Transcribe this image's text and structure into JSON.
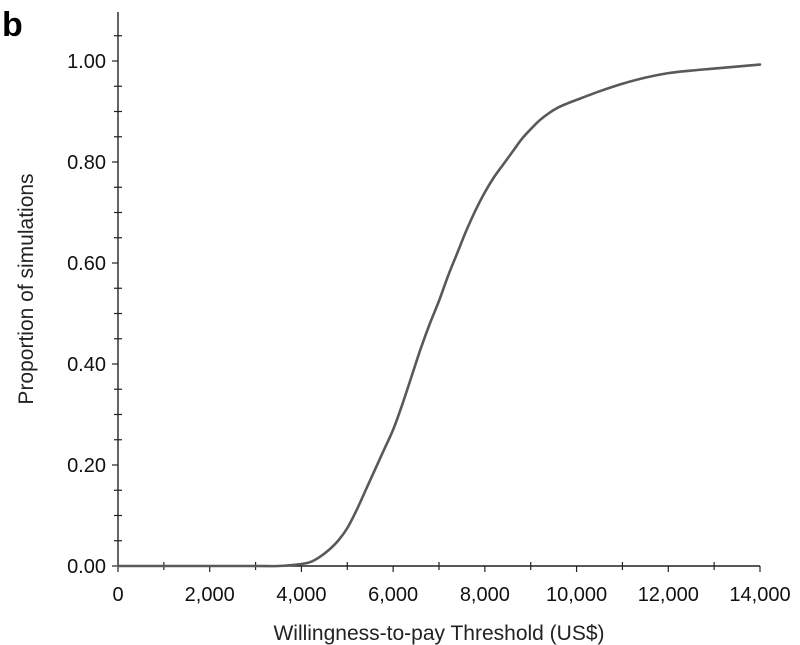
{
  "panel_label": "b",
  "chart_data": {
    "type": "line",
    "title": "",
    "xlabel": "Willingness-to-pay Threshold (US$)",
    "ylabel": "Proportion of simulations",
    "xlim": [
      0,
      14000
    ],
    "ylim": [
      0,
      1.1
    ],
    "x_ticks": [
      0,
      2000,
      4000,
      6000,
      8000,
      10000,
      12000,
      14000
    ],
    "x_tick_labels": [
      "0",
      "2,000",
      "4,000",
      "6,000",
      "8,000",
      "10,000",
      "12,000",
      "14,000"
    ],
    "y_ticks": [
      0,
      0.2,
      0.4,
      0.6,
      0.8,
      1.0
    ],
    "y_tick_labels": [
      "0.00",
      "0.20",
      "0.40",
      "0.60",
      "0.80",
      "1.00"
    ],
    "grid": false,
    "legend": "none",
    "series": [
      {
        "color": "#595959",
        "x": [
          0,
          1000,
          2000,
          3000,
          3500,
          4000,
          4200,
          4400,
          4600,
          4800,
          5000,
          5200,
          5400,
          5600,
          5800,
          6000,
          6200,
          6400,
          6600,
          6800,
          7000,
          7200,
          7400,
          7600,
          7800,
          8000,
          8200,
          8400,
          8600,
          8800,
          9000,
          9200,
          9400,
          9600,
          9800,
          10000,
          10500,
          11000,
          11500,
          12000,
          12500,
          13000,
          13500,
          14000
        ],
        "y": [
          0,
          0,
          0,
          0,
          0,
          0.004,
          0.008,
          0.018,
          0.032,
          0.05,
          0.075,
          0.11,
          0.15,
          0.19,
          0.23,
          0.27,
          0.32,
          0.375,
          0.43,
          0.48,
          0.525,
          0.575,
          0.62,
          0.665,
          0.705,
          0.74,
          0.77,
          0.795,
          0.82,
          0.845,
          0.865,
          0.883,
          0.897,
          0.908,
          0.916,
          0.923,
          0.94,
          0.955,
          0.967,
          0.976,
          0.981,
          0.985,
          0.989,
          0.993
        ]
      }
    ]
  }
}
